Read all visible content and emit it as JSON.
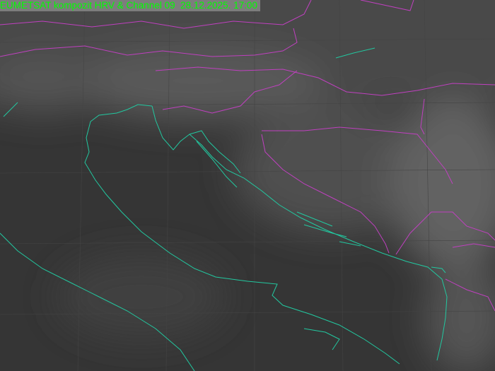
{
  "title": "EUMETSAT kompozit HRV & Channel 09  28.12.2025. 17:00",
  "colors": {
    "title_text": "#00ff00",
    "title_background": "#7d7d7d",
    "coastline": "#22c8a0",
    "borders": "#c040c0",
    "background": "#353535"
  }
}
